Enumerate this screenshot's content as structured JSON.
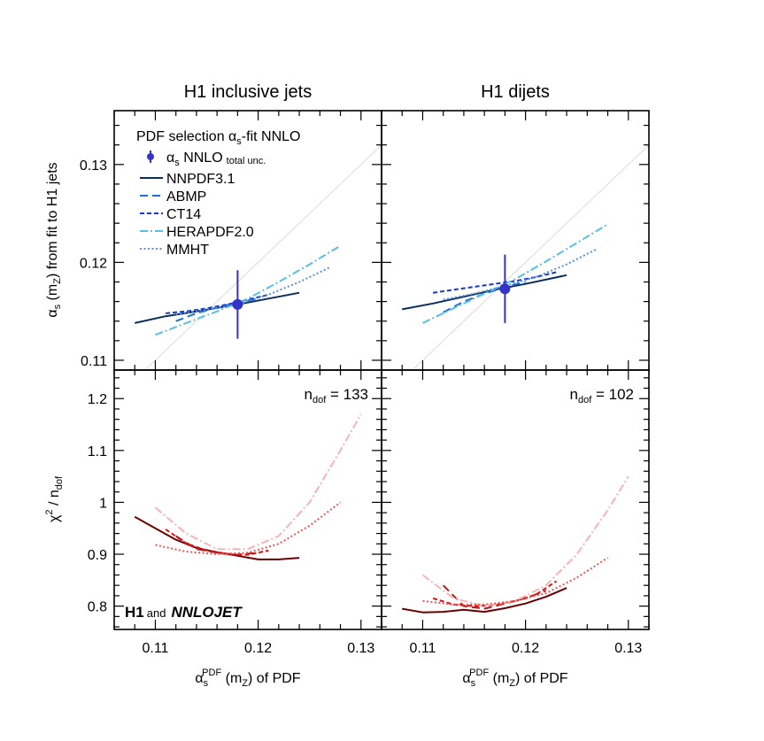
{
  "chart_data": {
    "type": "line",
    "panel_titles": [
      "H1 inclusive jets",
      "H1 dijets"
    ],
    "legend": {
      "title_main": "PDF selection ",
      "title_alpha": "α",
      "title_alpha_sub": "s",
      "title_tail": "-fit NNLO",
      "point_label_main": "α",
      "point_label_sub": "s",
      "point_label_tail": " NNLO",
      "point_label_note": "total unc.",
      "entries": [
        "NNPDF3.1",
        "ABMP",
        "CT14",
        "HERAPDF2.0",
        "MMHT"
      ]
    },
    "colors": {
      "NNPDF3.1": "#0b2d5e",
      "ABMP": "#1f6fd1",
      "CT14": "#1538d6",
      "HERAPDF2.0": "#55c1ea",
      "MMHT": "#5b8fd6",
      "point": "#3333cc",
      "chi_NNPDF3.1": "#6b0000",
      "chi_ABMP": "#aa2222",
      "chi_CT14": "#dd1111",
      "chi_HERAPDF2.0": "#f5b5b5",
      "chi_MMHT": "#ee5555"
    },
    "x_axis": {
      "label_main": "α",
      "label_sub": "s",
      "label_sup": "PDF",
      "label_tail": " (m",
      "label_tail_sub": "Z",
      "label_end": ") of PDF",
      "range": [
        0.106,
        0.132
      ],
      "ticks": [
        "0.11",
        "0.12",
        "0.13"
      ]
    },
    "top_y_axis": {
      "label_main": "α",
      "label_sub": "s",
      "label_tail": " (m",
      "label_tail_sub": "Z",
      "label_end": ") from fit to H1 jets",
      "range": [
        0.109,
        0.1355
      ],
      "ticks": [
        "0.11",
        "0.12",
        "0.13"
      ]
    },
    "bottom_y_axis": {
      "label_main": "χ",
      "label_sup": "2",
      "label_mid": " / n",
      "label_sub": "dof",
      "range": [
        0.755,
        1.255
      ],
      "ticks": [
        "0.8",
        "0.9",
        "1",
        "1.1",
        "1.2"
      ]
    },
    "ndof_labels": [
      {
        "main": "n",
        "sub": "dof",
        "value": " = 133"
      },
      {
        "main": "n",
        "sub": "dof",
        "value": " = 102"
      }
    ],
    "credit": {
      "bold": "H1",
      "mid": "and",
      "italic": "NNLOJET"
    },
    "top_panels": [
      {
        "point": {
          "x": 0.118,
          "y": 0.1157,
          "err": 0.0035
        },
        "series": [
          {
            "name": "NNPDF3.1",
            "x": [
              0.108,
              0.111,
              0.114,
              0.118,
              0.121,
              0.124
            ],
            "y": [
              0.1138,
              0.1145,
              0.115,
              0.1157,
              0.1163,
              0.1169
            ]
          },
          {
            "name": "ABMP",
            "x": [
              0.112,
              0.114,
              0.116,
              0.118,
              0.12
            ],
            "y": [
              0.114,
              0.1148,
              0.1154,
              0.1159,
              0.1163
            ]
          },
          {
            "name": "CT14",
            "x": [
              0.111,
              0.113,
              0.115,
              0.117,
              0.119,
              0.121
            ],
            "y": [
              0.1148,
              0.115,
              0.1153,
              0.1157,
              0.1162,
              0.1167
            ]
          },
          {
            "name": "HERAPDF2.0",
            "x": [
              0.11,
              0.113,
              0.116,
              0.119,
              0.122,
              0.125,
              0.128
            ],
            "y": [
              0.1126,
              0.1138,
              0.115,
              0.1163,
              0.118,
              0.1198,
              0.1217
            ]
          },
          {
            "name": "MMHT",
            "x": [
              0.112,
              0.115,
              0.118,
              0.121,
              0.124,
              0.127
            ],
            "y": [
              0.1147,
              0.1152,
              0.1157,
              0.1167,
              0.118,
              0.1195
            ]
          }
        ]
      },
      {
        "point": {
          "x": 0.118,
          "y": 0.1173,
          "err": 0.0035
        },
        "series": [
          {
            "name": "NNPDF3.1",
            "x": [
              0.108,
              0.111,
              0.114,
              0.117,
              0.12,
              0.124
            ],
            "y": [
              0.1152,
              0.1158,
              0.1165,
              0.1172,
              0.1178,
              0.1187
            ]
          },
          {
            "name": "ABMP",
            "x": [
              0.112,
              0.114,
              0.116,
              0.118,
              0.12
            ],
            "y": [
              0.1149,
              0.116,
              0.1168,
              0.1175,
              0.118
            ]
          },
          {
            "name": "CT14",
            "x": [
              0.111,
              0.113,
              0.115,
              0.117,
              0.119,
              0.121,
              0.123
            ],
            "y": [
              0.1169,
              0.1172,
              0.1175,
              0.1178,
              0.1181,
              0.1185,
              0.119
            ]
          },
          {
            "name": "HERAPDF2.0",
            "x": [
              0.11,
              0.113,
              0.116,
              0.119,
              0.122,
              0.125,
              0.128
            ],
            "y": [
              0.1138,
              0.1153,
              0.1168,
              0.1183,
              0.1201,
              0.122,
              0.1239
            ]
          },
          {
            "name": "MMHT",
            "x": [
              0.112,
              0.115,
              0.118,
              0.121,
              0.124,
              0.127
            ],
            "y": [
              0.1162,
              0.1168,
              0.1176,
              0.1185,
              0.1198,
              0.1214
            ]
          }
        ]
      }
    ],
    "bottom_panels": [
      {
        "series": [
          {
            "name": "NNPDF3.1",
            "x": [
              0.108,
              0.11,
              0.112,
              0.114,
              0.116,
              0.118,
              0.12,
              0.122,
              0.124
            ],
            "y": [
              0.972,
              0.95,
              0.928,
              0.912,
              0.904,
              0.897,
              0.89,
              0.89,
              0.893
            ]
          },
          {
            "name": "ABMP",
            "x": [
              0.112,
              0.114,
              0.116,
              0.118,
              0.12
            ],
            "y": [
              0.935,
              0.91,
              0.903,
              0.899,
              0.903
            ]
          },
          {
            "name": "CT14",
            "x": [
              0.111,
              0.113,
              0.115,
              0.117,
              0.119,
              0.121
            ],
            "y": [
              0.948,
              0.921,
              0.907,
              0.9,
              0.899,
              0.907
            ]
          },
          {
            "name": "HERAPDF2.0",
            "x": [
              0.11,
              0.113,
              0.116,
              0.119,
              0.122,
              0.125,
              0.128,
              0.13
            ],
            "y": [
              0.99,
              0.94,
              0.91,
              0.91,
              0.935,
              1.0,
              1.1,
              1.17
            ]
          },
          {
            "name": "MMHT",
            "x": [
              0.11,
              0.113,
              0.116,
              0.119,
              0.122,
              0.125,
              0.128
            ],
            "y": [
              0.918,
              0.905,
              0.9,
              0.903,
              0.92,
              0.955,
              1.0
            ]
          }
        ]
      },
      {
        "series": [
          {
            "name": "NNPDF3.1",
            "x": [
              0.108,
              0.11,
              0.112,
              0.114,
              0.116,
              0.118,
              0.12,
              0.122,
              0.124
            ],
            "y": [
              0.795,
              0.788,
              0.789,
              0.793,
              0.789,
              0.796,
              0.805,
              0.818,
              0.835
            ]
          },
          {
            "name": "ABMP",
            "x": [
              0.112,
              0.114,
              0.116,
              0.118,
              0.12,
              0.122
            ],
            "y": [
              0.84,
              0.8,
              0.795,
              0.805,
              0.815,
              0.83
            ]
          },
          {
            "name": "CT14",
            "x": [
              0.111,
              0.113,
              0.115,
              0.117,
              0.119,
              0.121,
              0.123
            ],
            "y": [
              0.815,
              0.803,
              0.8,
              0.802,
              0.81,
              0.822,
              0.848
            ]
          },
          {
            "name": "HERAPDF2.0",
            "x": [
              0.11,
              0.113,
              0.116,
              0.119,
              0.122,
              0.125,
              0.128,
              0.13
            ],
            "y": [
              0.86,
              0.815,
              0.8,
              0.81,
              0.84,
              0.9,
              0.985,
              1.05
            ]
          },
          {
            "name": "MMHT",
            "x": [
              0.11,
              0.113,
              0.116,
              0.119,
              0.122,
              0.125,
              0.128
            ],
            "y": [
              0.81,
              0.803,
              0.803,
              0.81,
              0.825,
              0.855,
              0.893
            ]
          }
        ]
      }
    ]
  }
}
